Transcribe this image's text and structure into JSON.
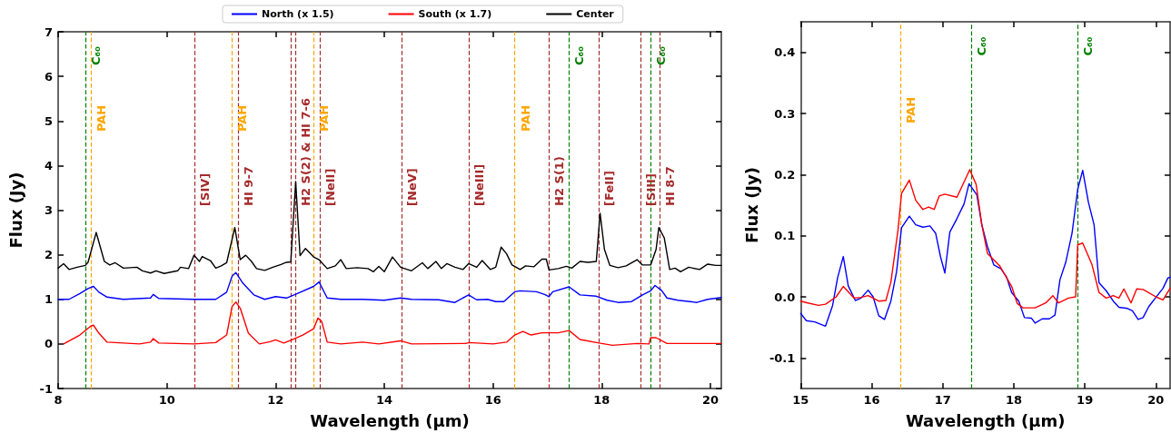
{
  "chart_data": [
    {
      "type": "line",
      "xlabel": "Wavelength (μm)",
      "ylabel": "Flux (Jy)",
      "xlim": [
        8,
        20.2
      ],
      "ylim": [
        -1,
        7
      ],
      "xticks": [
        8,
        10,
        12,
        14,
        16,
        18,
        20
      ],
      "yticks": [
        -1,
        0,
        1,
        2,
        3,
        4,
        5,
        6,
        7
      ],
      "legend": "top",
      "grid": false,
      "marker": "none",
      "line_style": "solid",
      "series": [
        {
          "name": "North (x 1.5)",
          "color": "#0000ff",
          "x": [
            8.0,
            8.2,
            8.4,
            8.55,
            8.65,
            8.75,
            8.9,
            9.2,
            9.7,
            9.75,
            9.85,
            10.5,
            10.9,
            11.1,
            11.2,
            11.27,
            11.4,
            11.6,
            11.8,
            12.0,
            12.2,
            12.4,
            12.7,
            12.8,
            12.95,
            13.2,
            13.6,
            14.0,
            14.3,
            14.5,
            15.0,
            15.3,
            15.55,
            15.7,
            15.9,
            16.05,
            16.2,
            16.4,
            16.5,
            16.8,
            16.95,
            17.03,
            17.1,
            17.4,
            17.6,
            17.9,
            18.1,
            18.3,
            18.55,
            18.75,
            18.9,
            18.98,
            19.1,
            19.2,
            19.4,
            19.75,
            19.95,
            20.2
          ],
          "values": [
            1.0,
            1.0,
            1.13,
            1.24,
            1.29,
            1.16,
            1.05,
            1.0,
            1.03,
            1.11,
            1.02,
            1.0,
            1.0,
            1.16,
            1.52,
            1.6,
            1.36,
            1.1,
            1.0,
            1.06,
            1.03,
            1.13,
            1.29,
            1.39,
            1.03,
            1.0,
            1.0,
            0.98,
            1.03,
            1.0,
            0.99,
            0.93,
            1.1,
            0.99,
            1.0,
            0.95,
            0.95,
            1.17,
            1.19,
            1.17,
            1.11,
            1.06,
            1.17,
            1.28,
            1.1,
            1.07,
            0.98,
            0.93,
            0.95,
            1.1,
            1.19,
            1.31,
            1.2,
            1.03,
            0.98,
            0.93,
            1.0,
            1.04
          ]
        },
        {
          "name": "South (x 1.7)",
          "color": "#ff0000",
          "x": [
            8.1,
            8.4,
            8.6,
            8.65,
            8.75,
            8.9,
            9.5,
            9.7,
            9.75,
            9.85,
            10.5,
            10.9,
            11.1,
            11.2,
            11.27,
            11.35,
            11.5,
            11.7,
            11.9,
            12.0,
            12.15,
            12.3,
            12.5,
            12.7,
            12.78,
            12.85,
            12.95,
            13.2,
            13.6,
            13.9,
            14.3,
            14.5,
            15.5,
            15.56,
            16.0,
            16.25,
            16.4,
            16.55,
            16.7,
            16.9,
            17.2,
            17.4,
            17.6,
            17.95,
            18.2,
            18.65,
            18.87,
            18.9,
            19.0,
            19.2,
            19.5,
            20.2
          ],
          "values": [
            0.0,
            0.2,
            0.4,
            0.42,
            0.24,
            0.04,
            0.0,
            0.04,
            0.12,
            0.02,
            0.0,
            0.03,
            0.2,
            0.84,
            0.94,
            0.8,
            0.24,
            0.0,
            0.05,
            0.09,
            0.02,
            0.09,
            0.2,
            0.34,
            0.58,
            0.5,
            0.04,
            0.0,
            0.04,
            0.0,
            0.07,
            0.0,
            0.01,
            0.03,
            0.0,
            0.04,
            0.2,
            0.28,
            0.2,
            0.25,
            0.25,
            0.3,
            0.1,
            0.02,
            -0.03,
            0.01,
            0.0,
            0.14,
            0.14,
            0.01,
            0.01,
            0.01
          ]
        },
        {
          "name": "Center",
          "color": "#000000",
          "x": [
            8.0,
            8.1,
            8.2,
            8.35,
            8.5,
            8.55,
            8.7,
            8.85,
            8.95,
            9.05,
            9.2,
            9.45,
            9.55,
            9.7,
            9.8,
            9.95,
            10.2,
            10.25,
            10.4,
            10.5,
            10.6,
            10.65,
            10.8,
            10.9,
            11.0,
            11.1,
            11.25,
            11.35,
            11.45,
            11.55,
            11.65,
            11.8,
            11.95,
            12.1,
            12.2,
            12.28,
            12.37,
            12.45,
            12.55,
            12.7,
            12.8,
            12.95,
            13.1,
            13.2,
            13.3,
            13.5,
            13.7,
            13.8,
            13.9,
            14.0,
            14.15,
            14.3,
            14.5,
            14.7,
            14.8,
            14.95,
            15.05,
            15.15,
            15.3,
            15.45,
            15.55,
            15.7,
            15.8,
            15.95,
            16.05,
            16.15,
            16.25,
            16.35,
            16.5,
            16.6,
            16.75,
            16.9,
            16.98,
            17.03,
            17.2,
            17.35,
            17.45,
            17.6,
            17.75,
            17.9,
            17.97,
            18.05,
            18.15,
            18.3,
            18.45,
            18.65,
            18.75,
            18.9,
            19.0,
            19.05,
            19.15,
            19.25,
            19.35,
            19.45,
            19.6,
            19.8,
            19.95,
            20.1,
            20.2
          ],
          "values": [
            1.7,
            1.8,
            1.67,
            1.72,
            1.76,
            1.83,
            2.5,
            1.85,
            1.77,
            1.82,
            1.7,
            1.72,
            1.64,
            1.59,
            1.64,
            1.58,
            1.64,
            1.72,
            1.69,
            1.99,
            1.85,
            1.96,
            1.87,
            1.7,
            1.75,
            1.82,
            2.61,
            1.89,
            1.99,
            1.86,
            1.69,
            1.65,
            1.72,
            1.78,
            1.83,
            1.84,
            3.64,
            1.98,
            2.14,
            1.95,
            1.89,
            1.69,
            1.75,
            1.89,
            1.69,
            1.71,
            1.69,
            1.62,
            1.74,
            1.62,
            1.95,
            1.72,
            1.64,
            1.82,
            1.69,
            1.85,
            1.69,
            1.8,
            1.72,
            1.67,
            1.8,
            1.72,
            1.87,
            1.67,
            1.72,
            2.17,
            2.02,
            1.77,
            1.67,
            1.75,
            1.73,
            1.9,
            1.9,
            1.66,
            1.69,
            1.74,
            1.7,
            1.85,
            1.83,
            1.85,
            2.93,
            2.12,
            1.76,
            1.71,
            1.75,
            1.89,
            1.77,
            1.77,
            2.12,
            2.61,
            2.38,
            1.67,
            1.7,
            1.62,
            1.72,
            1.67,
            1.79,
            1.76,
            1.76
          ]
        }
      ],
      "ref_lines": [
        {
          "axis": "x",
          "value": 8.5,
          "label": "C₆₀",
          "color": "#008000",
          "line_style": "dashed"
        },
        {
          "axis": "x",
          "value": 8.6,
          "label": "PAH",
          "color": "#ffa500",
          "line_style": "dashed"
        },
        {
          "axis": "x",
          "value": 10.51,
          "label": "[SIV]",
          "color": "#a52a2a",
          "line_style": "dashed"
        },
        {
          "axis": "x",
          "value": 11.2,
          "label": "PAH",
          "color": "#ffa500",
          "line_style": "dashed"
        },
        {
          "axis": "x",
          "value": 11.31,
          "label": "HI 9-7",
          "color": "#a52a2a",
          "line_style": "dashed"
        },
        {
          "axis": "x",
          "value": 12.28,
          "color": "#a52a2a",
          "line_style": "dashed"
        },
        {
          "axis": "x",
          "value": 12.37,
          "label": "H2 S(2) & HI 7-6",
          "color": "#a52a2a",
          "line_style": "dashed"
        },
        {
          "axis": "x",
          "value": 12.7,
          "label": "PAH",
          "color": "#ffa500",
          "line_style": "dashed"
        },
        {
          "axis": "x",
          "value": 12.81,
          "label": "[NeII]",
          "color": "#a52a2a",
          "line_style": "dashed"
        },
        {
          "axis": "x",
          "value": 14.32,
          "label": "[NeV]",
          "color": "#a52a2a",
          "line_style": "dashed"
        },
        {
          "axis": "x",
          "value": 15.56,
          "label": "[NeIII]",
          "color": "#a52a2a",
          "line_style": "dashed"
        },
        {
          "axis": "x",
          "value": 16.4,
          "label": "PAH",
          "color": "#ffa500",
          "line_style": "dashed"
        },
        {
          "axis": "x",
          "value": 17.03,
          "label": "H2 S(1)",
          "color": "#a52a2a",
          "line_style": "dashed"
        },
        {
          "axis": "x",
          "value": 17.4,
          "label": "C₆₀",
          "color": "#008000",
          "line_style": "dashed"
        },
        {
          "axis": "x",
          "value": 17.94,
          "label": "[FeII]",
          "color": "#a52a2a",
          "line_style": "dashed"
        },
        {
          "axis": "x",
          "value": 18.71,
          "label": "[SIII]",
          "color": "#a52a2a",
          "line_style": "dashed"
        },
        {
          "axis": "x",
          "value": 18.9,
          "label": "C₆₀",
          "color": "#008000",
          "line_style": "dashed"
        },
        {
          "axis": "x",
          "value": 19.06,
          "label": "HI 8-7",
          "color": "#a52a2a",
          "line_style": "dashed"
        }
      ]
    },
    {
      "type": "line",
      "xlabel": "Wavelength (μm)",
      "ylabel": "Flux (Jy)",
      "xlim": [
        15,
        20.2
      ],
      "ylim": [
        -0.15,
        0.45
      ],
      "xticks": [
        15,
        16,
        17,
        18,
        19,
        20
      ],
      "yticks": [
        -0.1,
        {
          "value": 0,
          "label": "0.0"
        },
        0.1,
        0.2,
        0.3,
        0.4
      ],
      "grid": false,
      "marker": "none",
      "line_style": "solid",
      "series": [
        {
          "color": "#0000ff",
          "x": [
            15.0,
            15.08,
            15.2,
            15.35,
            15.45,
            15.52,
            15.6,
            15.67,
            15.77,
            15.85,
            15.95,
            16.02,
            16.1,
            16.18,
            16.27,
            16.35,
            16.42,
            16.53,
            16.62,
            16.72,
            16.82,
            16.9,
            16.97,
            17.03,
            17.1,
            17.2,
            17.3,
            17.37,
            17.48,
            17.55,
            17.63,
            17.72,
            17.82,
            17.9,
            17.97,
            18.07,
            18.15,
            18.25,
            18.3,
            18.4,
            18.5,
            18.58,
            18.65,
            18.73,
            18.82,
            18.9,
            18.97,
            19.05,
            19.13,
            19.2,
            19.3,
            19.4,
            19.48,
            19.6,
            19.67,
            19.75,
            19.82,
            19.9,
            20.0,
            20.1,
            20.17,
            20.2
          ],
          "values": [
            -0.027,
            -0.039,
            -0.041,
            -0.048,
            -0.014,
            0.031,
            0.066,
            0.018,
            -0.006,
            -0.002,
            0.011,
            0.0,
            -0.031,
            -0.037,
            -0.007,
            0.041,
            0.113,
            0.132,
            0.118,
            0.114,
            0.116,
            0.104,
            0.065,
            0.039,
            0.106,
            0.128,
            0.152,
            0.185,
            0.167,
            0.118,
            0.082,
            0.052,
            0.046,
            0.032,
            0.007,
            -0.007,
            -0.034,
            -0.035,
            -0.043,
            -0.036,
            -0.036,
            -0.03,
            0.028,
            0.056,
            0.104,
            0.176,
            0.207,
            0.155,
            0.118,
            0.023,
            0.01,
            -0.007,
            -0.017,
            -0.019,
            -0.023,
            -0.037,
            -0.034,
            -0.016,
            -0.001,
            0.014,
            0.031,
            0.032
          ]
        },
        {
          "color": "#ff0000",
          "x": [
            15.0,
            15.1,
            15.25,
            15.35,
            15.5,
            15.6,
            15.75,
            15.85,
            15.95,
            16.1,
            16.2,
            16.27,
            16.37,
            16.42,
            16.53,
            16.62,
            16.72,
            16.8,
            16.88,
            16.95,
            17.03,
            17.2,
            17.38,
            17.47,
            17.55,
            17.63,
            17.8,
            17.97,
            18.05,
            18.13,
            18.3,
            18.45,
            18.55,
            18.63,
            18.77,
            18.87,
            18.9,
            18.97,
            19.1,
            19.2,
            19.3,
            19.4,
            19.48,
            19.55,
            19.65,
            19.73,
            19.82,
            20.0,
            20.1,
            20.2
          ],
          "values": [
            -0.007,
            -0.01,
            -0.014,
            -0.012,
            0.0,
            0.017,
            -0.002,
            -0.001,
            0.002,
            -0.007,
            -0.006,
            0.024,
            0.109,
            0.169,
            0.191,
            0.158,
            0.143,
            0.147,
            0.143,
            0.165,
            0.168,
            0.163,
            0.208,
            0.184,
            0.118,
            0.071,
            0.051,
            0.017,
            -0.011,
            -0.018,
            -0.018,
            -0.01,
            0.002,
            -0.01,
            -0.002,
            0.0,
            0.085,
            0.088,
            0.053,
            0.007,
            -0.002,
            0.002,
            -0.002,
            0.013,
            -0.01,
            0.013,
            0.012,
            0.0,
            -0.005,
            0.014
          ]
        }
      ],
      "ref_lines": [
        {
          "axis": "x",
          "value": 16.4,
          "label": "PAH",
          "color": "#ffa500",
          "line_style": "dashed"
        },
        {
          "axis": "x",
          "value": 17.4,
          "label": "C₆₀",
          "color": "#008000",
          "line_style": "dashed"
        },
        {
          "axis": "x",
          "value": 18.9,
          "label": "C₆₀",
          "color": "#008000",
          "line_style": "dashed"
        }
      ]
    }
  ]
}
